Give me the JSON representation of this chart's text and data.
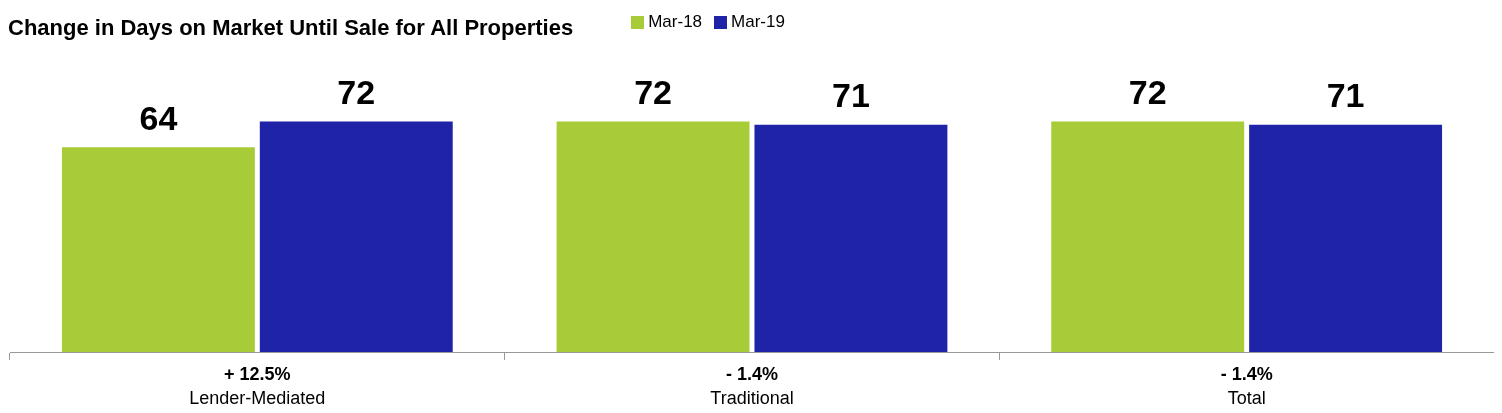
{
  "chart_data": {
    "type": "bar",
    "title": "Change in Days on Market Until Sale for All Properties",
    "categories": [
      "Lender-Mediated",
      "Traditional",
      "Total"
    ],
    "series": [
      {
        "name": "Mar-18",
        "color": "#a8cb38",
        "values": [
          64,
          72,
          72
        ]
      },
      {
        "name": "Mar-19",
        "color": "#1f23a8",
        "values": [
          72,
          71,
          71
        ]
      }
    ],
    "tick_labels": "x",
    "data_labels": true,
    "legend": "top",
    "annotations": [
      "+ 12.5%",
      "- 1.4%",
      "- 1.4%"
    ]
  }
}
